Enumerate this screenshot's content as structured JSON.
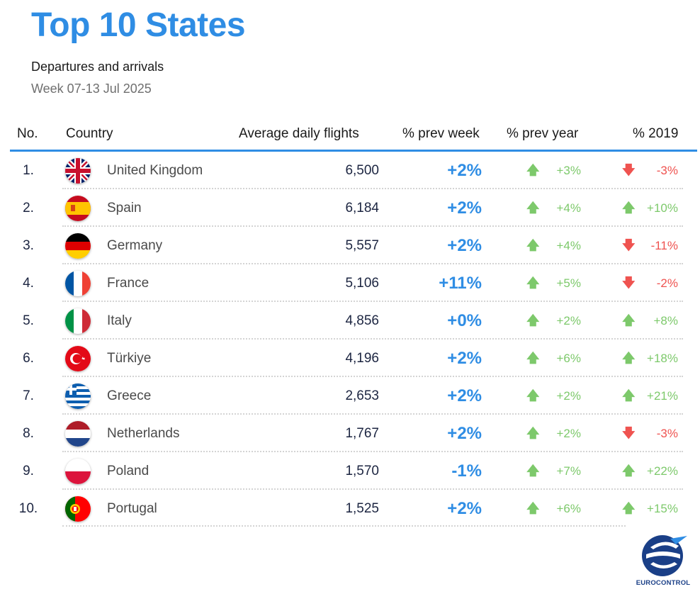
{
  "header": {
    "title": "Top 10 States",
    "subtitle": "Departures and arrivals",
    "week": "Week 07-13 Jul 2025"
  },
  "columns": {
    "no": "No.",
    "country": "Country",
    "flights": "Average daily flights",
    "prev_week": "% prev week",
    "prev_year": "% prev year",
    "y2019": "% 2019"
  },
  "colors": {
    "accent": "#2f8de4",
    "up": "#7dc96b",
    "down": "#ef5350",
    "text": "#1c2541"
  },
  "rows": [
    {
      "rank": "1.",
      "flag": "flag-uk-icon",
      "country": "United Kingdom",
      "flights": "6,500",
      "prev_week": "+2%",
      "prev_year": "+3%",
      "prev_year_dir": "up",
      "y2019": "-3%",
      "y2019_dir": "down"
    },
    {
      "rank": "2.",
      "flag": "flag-spain-icon",
      "country": "Spain",
      "flights": "6,184",
      "prev_week": "+2%",
      "prev_year": "+4%",
      "prev_year_dir": "up",
      "y2019": "+10%",
      "y2019_dir": "up"
    },
    {
      "rank": "3.",
      "flag": "flag-germany-icon",
      "country": "Germany",
      "flights": "5,557",
      "prev_week": "+2%",
      "prev_year": "+4%",
      "prev_year_dir": "up",
      "y2019": "-11%",
      "y2019_dir": "down"
    },
    {
      "rank": "4.",
      "flag": "flag-france-icon",
      "country": "France",
      "flights": "5,106",
      "prev_week": "+11%",
      "prev_year": "+5%",
      "prev_year_dir": "up",
      "y2019": "-2%",
      "y2019_dir": "down"
    },
    {
      "rank": "5.",
      "flag": "flag-italy-icon",
      "country": "Italy",
      "flights": "4,856",
      "prev_week": "+0%",
      "prev_year": "+2%",
      "prev_year_dir": "up",
      "y2019": "+8%",
      "y2019_dir": "up"
    },
    {
      "rank": "6.",
      "flag": "flag-turkiye-icon",
      "country": "Türkiye",
      "flights": "4,196",
      "prev_week": "+2%",
      "prev_year": "+6%",
      "prev_year_dir": "up",
      "y2019": "+18%",
      "y2019_dir": "up"
    },
    {
      "rank": "7.",
      "flag": "flag-greece-icon",
      "country": "Greece",
      "flights": "2,653",
      "prev_week": "+2%",
      "prev_year": "+2%",
      "prev_year_dir": "up",
      "y2019": "+21%",
      "y2019_dir": "up"
    },
    {
      "rank": "8.",
      "flag": "flag-netherlands-icon",
      "country": "Netherlands",
      "flights": "1,767",
      "prev_week": "+2%",
      "prev_year": "+2%",
      "prev_year_dir": "up",
      "y2019": "-3%",
      "y2019_dir": "down"
    },
    {
      "rank": "9.",
      "flag": "flag-poland-icon",
      "country": "Poland",
      "flights": "1,570",
      "prev_week": "-1%",
      "prev_year": "+7%",
      "prev_year_dir": "up",
      "y2019": "+22%",
      "y2019_dir": "up"
    },
    {
      "rank": "10.",
      "flag": "flag-portugal-icon",
      "country": "Portugal",
      "flights": "1,525",
      "prev_week": "+2%",
      "prev_year": "+6%",
      "prev_year_dir": "up",
      "y2019": "+15%",
      "y2019_dir": "up"
    }
  ],
  "footer": {
    "logo_text": "EUROCONTROL"
  }
}
